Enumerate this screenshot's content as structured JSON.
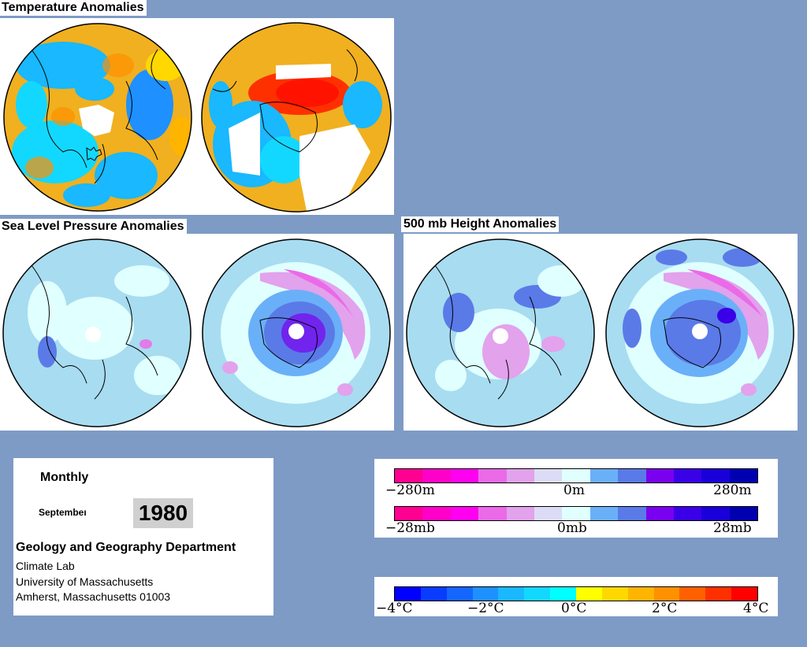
{
  "sections": {
    "temperature_title": "Temperature Anomalies",
    "slp_title": "Sea Level Pressure Anomalies",
    "height_title": "500 mb Height Anomalies"
  },
  "info": {
    "period": "Monthly",
    "month": "Septembeı",
    "year": "1980",
    "department": "Geology and Geography Department",
    "lab": "Climate Lab",
    "university": "University of Massachusetts",
    "address": "Amherst, Massachusetts 01003"
  },
  "legend_height": {
    "min_label": "−280m",
    "mid_label": "0m",
    "max_label": "280m",
    "colors": [
      "#ff0090",
      "#ff00c8",
      "#ff00f0",
      "#ea6ae8",
      "#e2a2ec",
      "#dcdcf6",
      "#e0ffff",
      "#6ab0f8",
      "#5a7ae8",
      "#7a00f0",
      "#3a00e8",
      "#1a00d8",
      "#0000b0"
    ]
  },
  "legend_pressure": {
    "min_label": "−28mb",
    "mid_label": "0mb",
    "max_label": "28mb",
    "colors": [
      "#ff0090",
      "#ff00c8",
      "#ff00f0",
      "#ea6ae8",
      "#e2a2ec",
      "#dcdcf6",
      "#e0ffff",
      "#6ab0f8",
      "#5a7ae8",
      "#7a00f0",
      "#3a00e8",
      "#1a00d8",
      "#0000b0"
    ]
  },
  "legend_temperature": {
    "labels": [
      "−4°C",
      "−2°C",
      "0°C",
      "2°C",
      "4°C"
    ],
    "colors": [
      "#0000ff",
      "#0a3cff",
      "#1466ff",
      "#1e90ff",
      "#19b8ff",
      "#12d8ff",
      "#00ffff",
      "#ffff00",
      "#ffd800",
      "#ffb400",
      "#ff9000",
      "#ff6000",
      "#ff3000",
      "#ff0000"
    ]
  },
  "colors": {
    "background": "#7e9bc6",
    "temp_warm": "#f0b020",
    "temp_cool": "#19b8ff",
    "slp_base": "#a8dcf0",
    "slp_neg": "#5a7ae8",
    "slp_pos": "#e27ae8"
  }
}
